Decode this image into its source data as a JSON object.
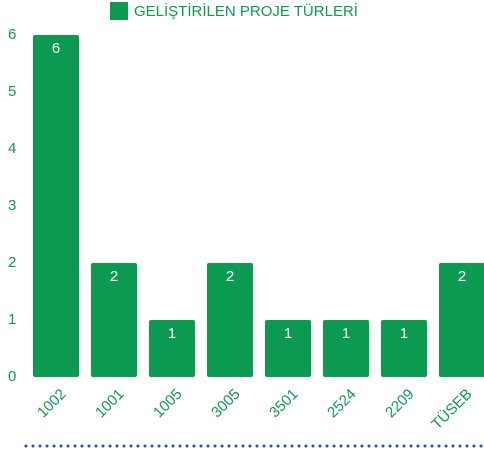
{
  "chart_data": {
    "type": "bar",
    "categories": [
      "1002",
      "1001",
      "1005",
      "3005",
      "3501",
      "2524",
      "2209",
      "TÜSEB"
    ],
    "series": [
      {
        "name": "GELİŞTİRİLEN PROJE TÜRLERİ",
        "color": "#0b9a50",
        "values": [
          6,
          2,
          1,
          2,
          1,
          1,
          1,
          2
        ]
      }
    ],
    "ylim": [
      0,
      6
    ],
    "yticks": [
      0,
      1,
      2,
      3,
      4,
      5,
      6
    ],
    "grid": false,
    "legend": "top"
  }
}
